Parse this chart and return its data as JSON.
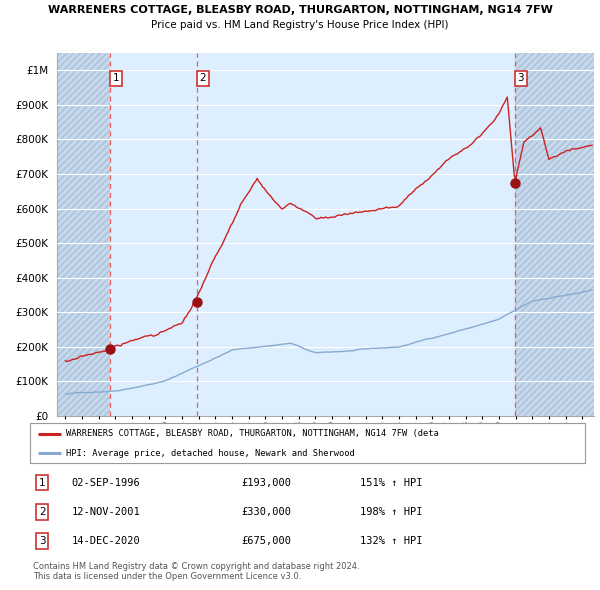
{
  "title1": "WARRENERS COTTAGE, BLEASBY ROAD, THURGARTON, NOTTINGHAM, NG14 7FW",
  "title2": "Price paid vs. HM Land Registry's House Price Index (HPI)",
  "purchases": [
    {
      "num": 1,
      "date": "02-SEP-1996",
      "price": 193000,
      "pct": "151%",
      "x_year": 1996.67
    },
    {
      "num": 2,
      "date": "12-NOV-2001",
      "price": 330000,
      "pct": "198%",
      "x_year": 2001.87
    },
    {
      "num": 3,
      "date": "14-DEC-2020",
      "price": 675000,
      "pct": "132%",
      "x_year": 2020.96
    }
  ],
  "legend_line1": "WARRENERS COTTAGE, BLEASBY ROAD, THURGARTON, NOTTINGHAM, NG14 7FW (deta",
  "legend_line2": "HPI: Average price, detached house, Newark and Sherwood",
  "footer1": "Contains HM Land Registry data © Crown copyright and database right 2024.",
  "footer2": "This data is licensed under the Open Government Licence v3.0.",
  "ylim": [
    0,
    1050000
  ],
  "xlim_start": 1993.5,
  "xlim_end": 2025.7,
  "plot_bg": "#ddeeff",
  "grid_color": "#ffffff",
  "red_line_color": "#cc2222",
  "blue_line_color": "#88aad0",
  "dot_color": "#991111",
  "vline_color": "#ee4444",
  "hatch_color": "#b0c4de"
}
